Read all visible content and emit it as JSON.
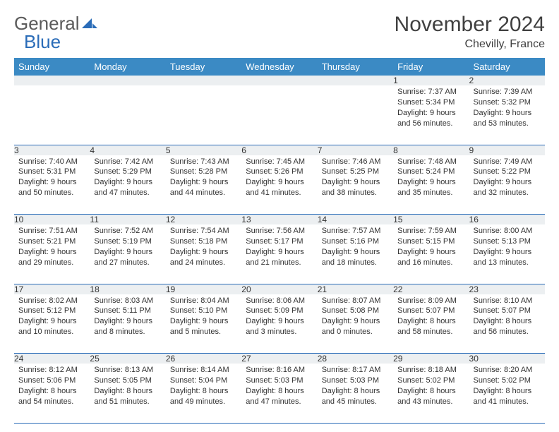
{
  "logo": {
    "text1": "General",
    "text2": "Blue"
  },
  "title": "November 2024",
  "location": "Chevilly, France",
  "colors": {
    "header_bg": "#3b8ac4",
    "daynum_bg": "#eceff1",
    "border": "#2a6cb8",
    "text": "#333333"
  },
  "weekdays": [
    "Sunday",
    "Monday",
    "Tuesday",
    "Wednesday",
    "Thursday",
    "Friday",
    "Saturday"
  ],
  "weeks": [
    [
      null,
      null,
      null,
      null,
      null,
      {
        "n": "1",
        "sunrise": "7:37 AM",
        "sunset": "5:34 PM",
        "dl1": "9 hours",
        "dl2": "and 56 minutes."
      },
      {
        "n": "2",
        "sunrise": "7:39 AM",
        "sunset": "5:32 PM",
        "dl1": "9 hours",
        "dl2": "and 53 minutes."
      }
    ],
    [
      {
        "n": "3",
        "sunrise": "7:40 AM",
        "sunset": "5:31 PM",
        "dl1": "9 hours",
        "dl2": "and 50 minutes."
      },
      {
        "n": "4",
        "sunrise": "7:42 AM",
        "sunset": "5:29 PM",
        "dl1": "9 hours",
        "dl2": "and 47 minutes."
      },
      {
        "n": "5",
        "sunrise": "7:43 AM",
        "sunset": "5:28 PM",
        "dl1": "9 hours",
        "dl2": "and 44 minutes."
      },
      {
        "n": "6",
        "sunrise": "7:45 AM",
        "sunset": "5:26 PM",
        "dl1": "9 hours",
        "dl2": "and 41 minutes."
      },
      {
        "n": "7",
        "sunrise": "7:46 AM",
        "sunset": "5:25 PM",
        "dl1": "9 hours",
        "dl2": "and 38 minutes."
      },
      {
        "n": "8",
        "sunrise": "7:48 AM",
        "sunset": "5:24 PM",
        "dl1": "9 hours",
        "dl2": "and 35 minutes."
      },
      {
        "n": "9",
        "sunrise": "7:49 AM",
        "sunset": "5:22 PM",
        "dl1": "9 hours",
        "dl2": "and 32 minutes."
      }
    ],
    [
      {
        "n": "10",
        "sunrise": "7:51 AM",
        "sunset": "5:21 PM",
        "dl1": "9 hours",
        "dl2": "and 29 minutes."
      },
      {
        "n": "11",
        "sunrise": "7:52 AM",
        "sunset": "5:19 PM",
        "dl1": "9 hours",
        "dl2": "and 27 minutes."
      },
      {
        "n": "12",
        "sunrise": "7:54 AM",
        "sunset": "5:18 PM",
        "dl1": "9 hours",
        "dl2": "and 24 minutes."
      },
      {
        "n": "13",
        "sunrise": "7:56 AM",
        "sunset": "5:17 PM",
        "dl1": "9 hours",
        "dl2": "and 21 minutes."
      },
      {
        "n": "14",
        "sunrise": "7:57 AM",
        "sunset": "5:16 PM",
        "dl1": "9 hours",
        "dl2": "and 18 minutes."
      },
      {
        "n": "15",
        "sunrise": "7:59 AM",
        "sunset": "5:15 PM",
        "dl1": "9 hours",
        "dl2": "and 16 minutes."
      },
      {
        "n": "16",
        "sunrise": "8:00 AM",
        "sunset": "5:13 PM",
        "dl1": "9 hours",
        "dl2": "and 13 minutes."
      }
    ],
    [
      {
        "n": "17",
        "sunrise": "8:02 AM",
        "sunset": "5:12 PM",
        "dl1": "9 hours",
        "dl2": "and 10 minutes."
      },
      {
        "n": "18",
        "sunrise": "8:03 AM",
        "sunset": "5:11 PM",
        "dl1": "9 hours",
        "dl2": "and 8 minutes."
      },
      {
        "n": "19",
        "sunrise": "8:04 AM",
        "sunset": "5:10 PM",
        "dl1": "9 hours",
        "dl2": "and 5 minutes."
      },
      {
        "n": "20",
        "sunrise": "8:06 AM",
        "sunset": "5:09 PM",
        "dl1": "9 hours",
        "dl2": "and 3 minutes."
      },
      {
        "n": "21",
        "sunrise": "8:07 AM",
        "sunset": "5:08 PM",
        "dl1": "9 hours",
        "dl2": "and 0 minutes."
      },
      {
        "n": "22",
        "sunrise": "8:09 AM",
        "sunset": "5:07 PM",
        "dl1": "8 hours",
        "dl2": "and 58 minutes."
      },
      {
        "n": "23",
        "sunrise": "8:10 AM",
        "sunset": "5:07 PM",
        "dl1": "8 hours",
        "dl2": "and 56 minutes."
      }
    ],
    [
      {
        "n": "24",
        "sunrise": "8:12 AM",
        "sunset": "5:06 PM",
        "dl1": "8 hours",
        "dl2": "and 54 minutes."
      },
      {
        "n": "25",
        "sunrise": "8:13 AM",
        "sunset": "5:05 PM",
        "dl1": "8 hours",
        "dl2": "and 51 minutes."
      },
      {
        "n": "26",
        "sunrise": "8:14 AM",
        "sunset": "5:04 PM",
        "dl1": "8 hours",
        "dl2": "and 49 minutes."
      },
      {
        "n": "27",
        "sunrise": "8:16 AM",
        "sunset": "5:03 PM",
        "dl1": "8 hours",
        "dl2": "and 47 minutes."
      },
      {
        "n": "28",
        "sunrise": "8:17 AM",
        "sunset": "5:03 PM",
        "dl1": "8 hours",
        "dl2": "and 45 minutes."
      },
      {
        "n": "29",
        "sunrise": "8:18 AM",
        "sunset": "5:02 PM",
        "dl1": "8 hours",
        "dl2": "and 43 minutes."
      },
      {
        "n": "30",
        "sunrise": "8:20 AM",
        "sunset": "5:02 PM",
        "dl1": "8 hours",
        "dl2": "and 41 minutes."
      }
    ]
  ]
}
